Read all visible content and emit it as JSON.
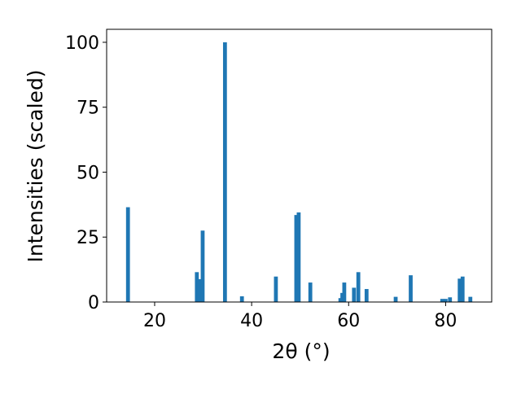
{
  "chart_data": {
    "type": "bar",
    "x_label": "2θ (°)",
    "y_label": "Intensities (scaled)",
    "color": "#1f77b4",
    "x": [
      14.5,
      28.7,
      29.3,
      29.9,
      34.5,
      38.0,
      45.0,
      49.2,
      49.7,
      52.1,
      58.3,
      58.7,
      59.1,
      61.1,
      62.0,
      63.7,
      69.7,
      72.8,
      79.3,
      80.0,
      80.9,
      82.9,
      83.5,
      85.1
    ],
    "values": [
      36.5,
      11.5,
      8.8,
      27.5,
      100,
      2.2,
      9.8,
      33.5,
      34.5,
      7.5,
      1.5,
      3.5,
      7.5,
      5.5,
      11.5,
      5.0,
      2.0,
      10.3,
      1.2,
      1.2,
      1.8,
      9.0,
      9.8,
      2.0
    ],
    "xlim": [
      10.1,
      89.5
    ],
    "ylim": [
      0,
      105
    ],
    "xticks": [
      20,
      40,
      60,
      80
    ],
    "yticks": [
      0,
      25,
      50,
      75,
      100
    ]
  }
}
